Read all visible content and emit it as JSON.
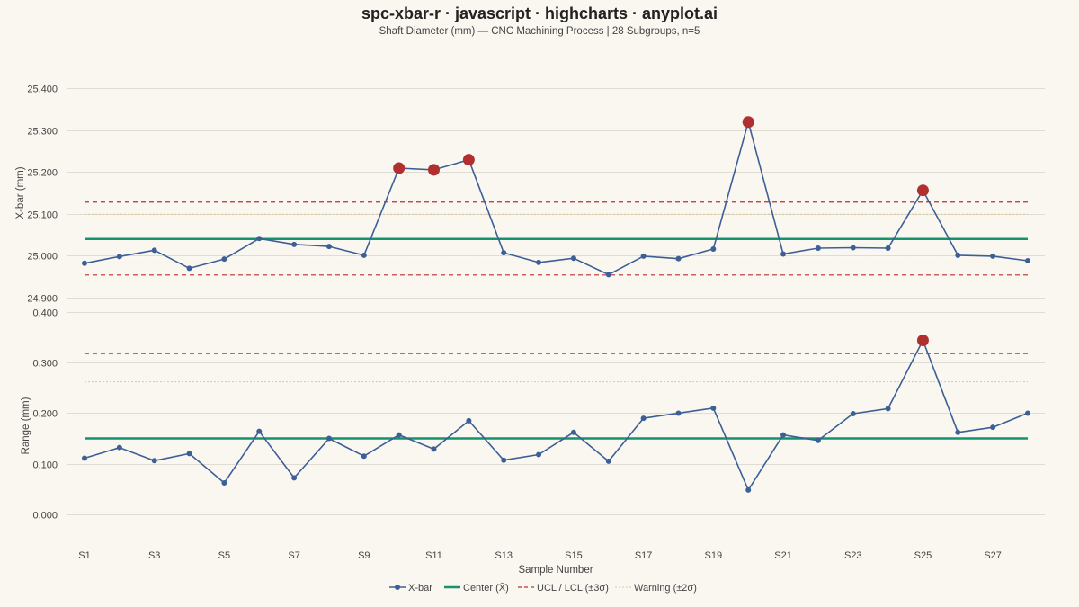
{
  "chart_data": {
    "type": "line",
    "title": "spc-xbar-r · javascript · highcharts · anyplot.ai",
    "subtitle": "Shaft Diameter (mm) — CNC Machining Process | 28 Subgroups, n=5",
    "xlabel": "Sample Number",
    "x_tick_labels": [
      "S1",
      "S3",
      "S5",
      "S7",
      "S9",
      "S11",
      "S13",
      "S15",
      "S17",
      "S19",
      "S21",
      "S23",
      "S25",
      "S27"
    ],
    "categories": [
      "S1",
      "S2",
      "S3",
      "S4",
      "S5",
      "S6",
      "S7",
      "S8",
      "S9",
      "S10",
      "S11",
      "S12",
      "S13",
      "S14",
      "S15",
      "S16",
      "S17",
      "S18",
      "S19",
      "S20",
      "S21",
      "S22",
      "S23",
      "S24",
      "S25",
      "S26",
      "S27",
      "S28"
    ],
    "legend_position": "bottom-center",
    "grid": true,
    "legend": [
      {
        "label": "X-bar",
        "color": "#3c5f96",
        "style": "line-marker"
      },
      {
        "label": "Center (X̄)",
        "color": "#14946e",
        "style": "solid"
      },
      {
        "label": "UCL / LCL (±3σ)",
        "color": "#b83232",
        "style": "dashed"
      },
      {
        "label": "Warning (±2σ)",
        "color": "#d8c98a",
        "style": "dotted"
      }
    ],
    "colors": {
      "series": "#3c5f96",
      "center": "#14946e",
      "limit": "#b83232",
      "warning": "#d8c98a",
      "out_of_control": "#b03030"
    },
    "panels": [
      {
        "ylabel": "X-bar (mm)",
        "ylim": [
          24.9,
          25.4
        ],
        "y_ticks": [
          24.9,
          25.0,
          25.1,
          25.2,
          25.3,
          25.4
        ],
        "y_tick_labels": [
          "24.900",
          "25.000",
          "25.100",
          "25.200",
          "25.300",
          "25.400"
        ],
        "center": 25.04,
        "ucl": 25.128,
        "lcl": 24.954,
        "warning_upper": 25.099,
        "warning_lower": 24.983,
        "values": [
          24.982,
          24.998,
          25.013,
          24.97,
          24.992,
          25.041,
          25.027,
          25.022,
          25.001,
          25.209,
          25.205,
          25.229,
          25.007,
          24.984,
          24.994,
          24.955,
          24.999,
          24.993,
          25.016,
          25.319,
          25.004,
          25.018,
          25.019,
          25.018,
          25.156,
          25.001,
          24.999,
          24.988
        ],
        "out_of_control_indices": [
          9,
          10,
          11,
          19,
          24
        ]
      },
      {
        "ylabel": "Range (mm)",
        "ylim": [
          -0.05,
          0.4
        ],
        "y_ticks": [
          0.0,
          0.1,
          0.2,
          0.3,
          0.4
        ],
        "y_tick_labels": [
          "0.000",
          "0.100",
          "0.200",
          "0.300",
          "0.400"
        ],
        "center": 0.15,
        "ucl": 0.318,
        "warning_upper": 0.262,
        "values": [
          0.111,
          0.132,
          0.106,
          0.12,
          0.062,
          0.164,
          0.072,
          0.15,
          0.115,
          0.157,
          0.129,
          0.185,
          0.107,
          0.118,
          0.162,
          0.105,
          0.19,
          0.2,
          0.21,
          0.048,
          0.157,
          0.146,
          0.199,
          0.209,
          0.344,
          0.162,
          0.172,
          0.2
        ],
        "out_of_control_indices": [
          24
        ]
      }
    ]
  }
}
